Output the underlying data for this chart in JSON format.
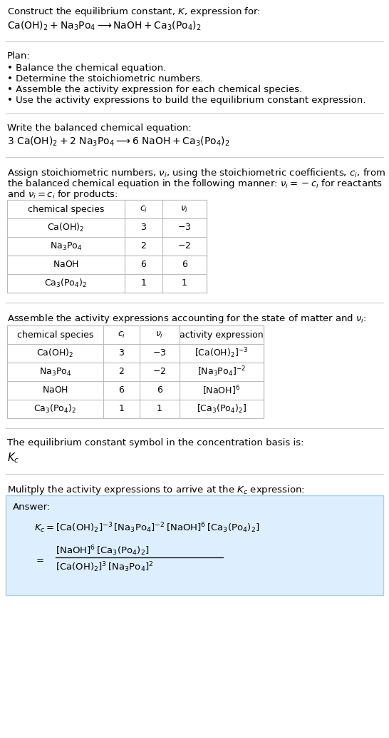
{
  "title_line1": "Construct the equilibrium constant, $K$, expression for:",
  "title_line2": "$\\mathrm{Ca(OH)_2 + Na_3Po_4 \\longrightarrow NaOH + Ca_3(Po_4)_2}$",
  "plan_header": "Plan:",
  "plan_items": [
    "• Balance the chemical equation.",
    "• Determine the stoichiometric numbers.",
    "• Assemble the activity expression for each chemical species.",
    "• Use the activity expressions to build the equilibrium constant expression."
  ],
  "balanced_header": "Write the balanced chemical equation:",
  "balanced_eq": "$\\mathrm{3\\ Ca(OH)_2 + 2\\ Na_3Po_4 \\longrightarrow 6\\ NaOH + Ca_3(Po_4)_2}$",
  "stoich_line1": "Assign stoichiometric numbers, $\\nu_i$, using the stoichiometric coefficients, $c_i$, from",
  "stoich_line2": "the balanced chemical equation in the following manner: $\\nu_i = -c_i$ for reactants",
  "stoich_line3": "and $\\nu_i = c_i$ for products:",
  "table1_headers": [
    "chemical species",
    "$c_i$",
    "$\\nu_i$"
  ],
  "table1_rows": [
    [
      "$\\mathrm{Ca(OH)_2}$",
      "3",
      "$-3$"
    ],
    [
      "$\\mathrm{Na_3Po_4}$",
      "2",
      "$-2$"
    ],
    [
      "$\\mathrm{NaOH}$",
      "6",
      "6"
    ],
    [
      "$\\mathrm{Ca_3(Po_4)_2}$",
      "1",
      "1"
    ]
  ],
  "activity_intro": "Assemble the activity expressions accounting for the state of matter and $\\nu_i$:",
  "table2_headers": [
    "chemical species",
    "$c_i$",
    "$\\nu_i$",
    "activity expression"
  ],
  "table2_rows": [
    [
      "$\\mathrm{Ca(OH)_2}$",
      "3",
      "$-3$",
      "$[\\mathrm{Ca(OH)_2}]^{-3}$"
    ],
    [
      "$\\mathrm{Na_3Po_4}$",
      "2",
      "$-2$",
      "$[\\mathrm{Na_3Po_4}]^{-2}$"
    ],
    [
      "$\\mathrm{NaOH}$",
      "6",
      "6",
      "$[\\mathrm{NaOH}]^{6}$"
    ],
    [
      "$\\mathrm{Ca_3(Po_4)_2}$",
      "1",
      "1",
      "$[\\mathrm{Ca_3(Po_4)_2}]$"
    ]
  ],
  "kc_header": "The equilibrium constant symbol in the concentration basis is:",
  "kc_symbol": "$K_c$",
  "multiply_header": "Mulitply the activity expressions to arrive at the $K_c$ expression:",
  "answer_label": "Answer:",
  "answer_line1": "$K_c = [\\mathrm{Ca(OH)_2}]^{-3}\\, [\\mathrm{Na_3Po_4}]^{-2}\\, [\\mathrm{NaOH}]^{6}\\, [\\mathrm{Ca_3(Po_4)_2}]$",
  "answer_eq_sign": "$=$",
  "answer_num": "$[\\mathrm{NaOH}]^{6}\\, [\\mathrm{Ca_3(Po_4)_2}]$",
  "answer_den": "$[\\mathrm{Ca(OH)_2}]^{3}\\, [\\mathrm{Na_3Po_4}]^{2}$",
  "bg_color": "#ffffff",
  "answer_bg_color": "#ddeeff",
  "table_line_color": "#bbbbbb",
  "text_color": "#000000",
  "separator_color": "#cccccc",
  "font_size": 9.5,
  "small_font": 9.0
}
